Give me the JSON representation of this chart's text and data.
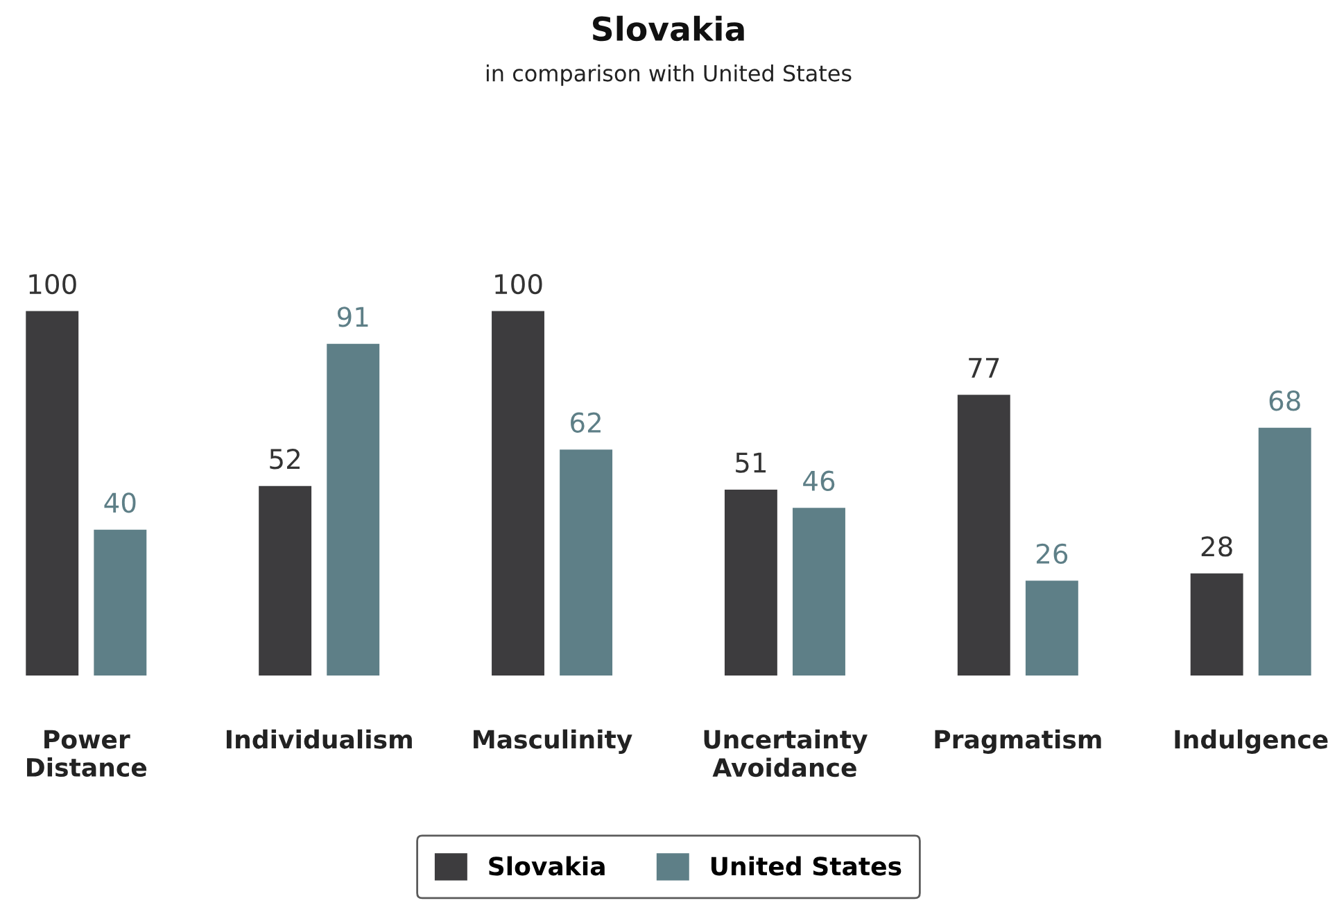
{
  "chart_data": {
    "type": "bar",
    "title": "Slovakia",
    "subtitle": "in comparison with United States",
    "categories": [
      "Power\nDistance",
      "Individualism",
      "Masculinity",
      "Uncertainty\nAvoidance",
      "Pragmatism",
      "Indulgence"
    ],
    "series": [
      {
        "name": "Slovakia",
        "color": "#3d3c3e",
        "values": [
          100,
          52,
          100,
          51,
          77,
          28
        ]
      },
      {
        "name": "United States",
        "color": "#5e7f87",
        "values": [
          40,
          91,
          62,
          46,
          26,
          68
        ]
      }
    ],
    "data_labels": true,
    "legend": "bottom",
    "grid": false
  }
}
